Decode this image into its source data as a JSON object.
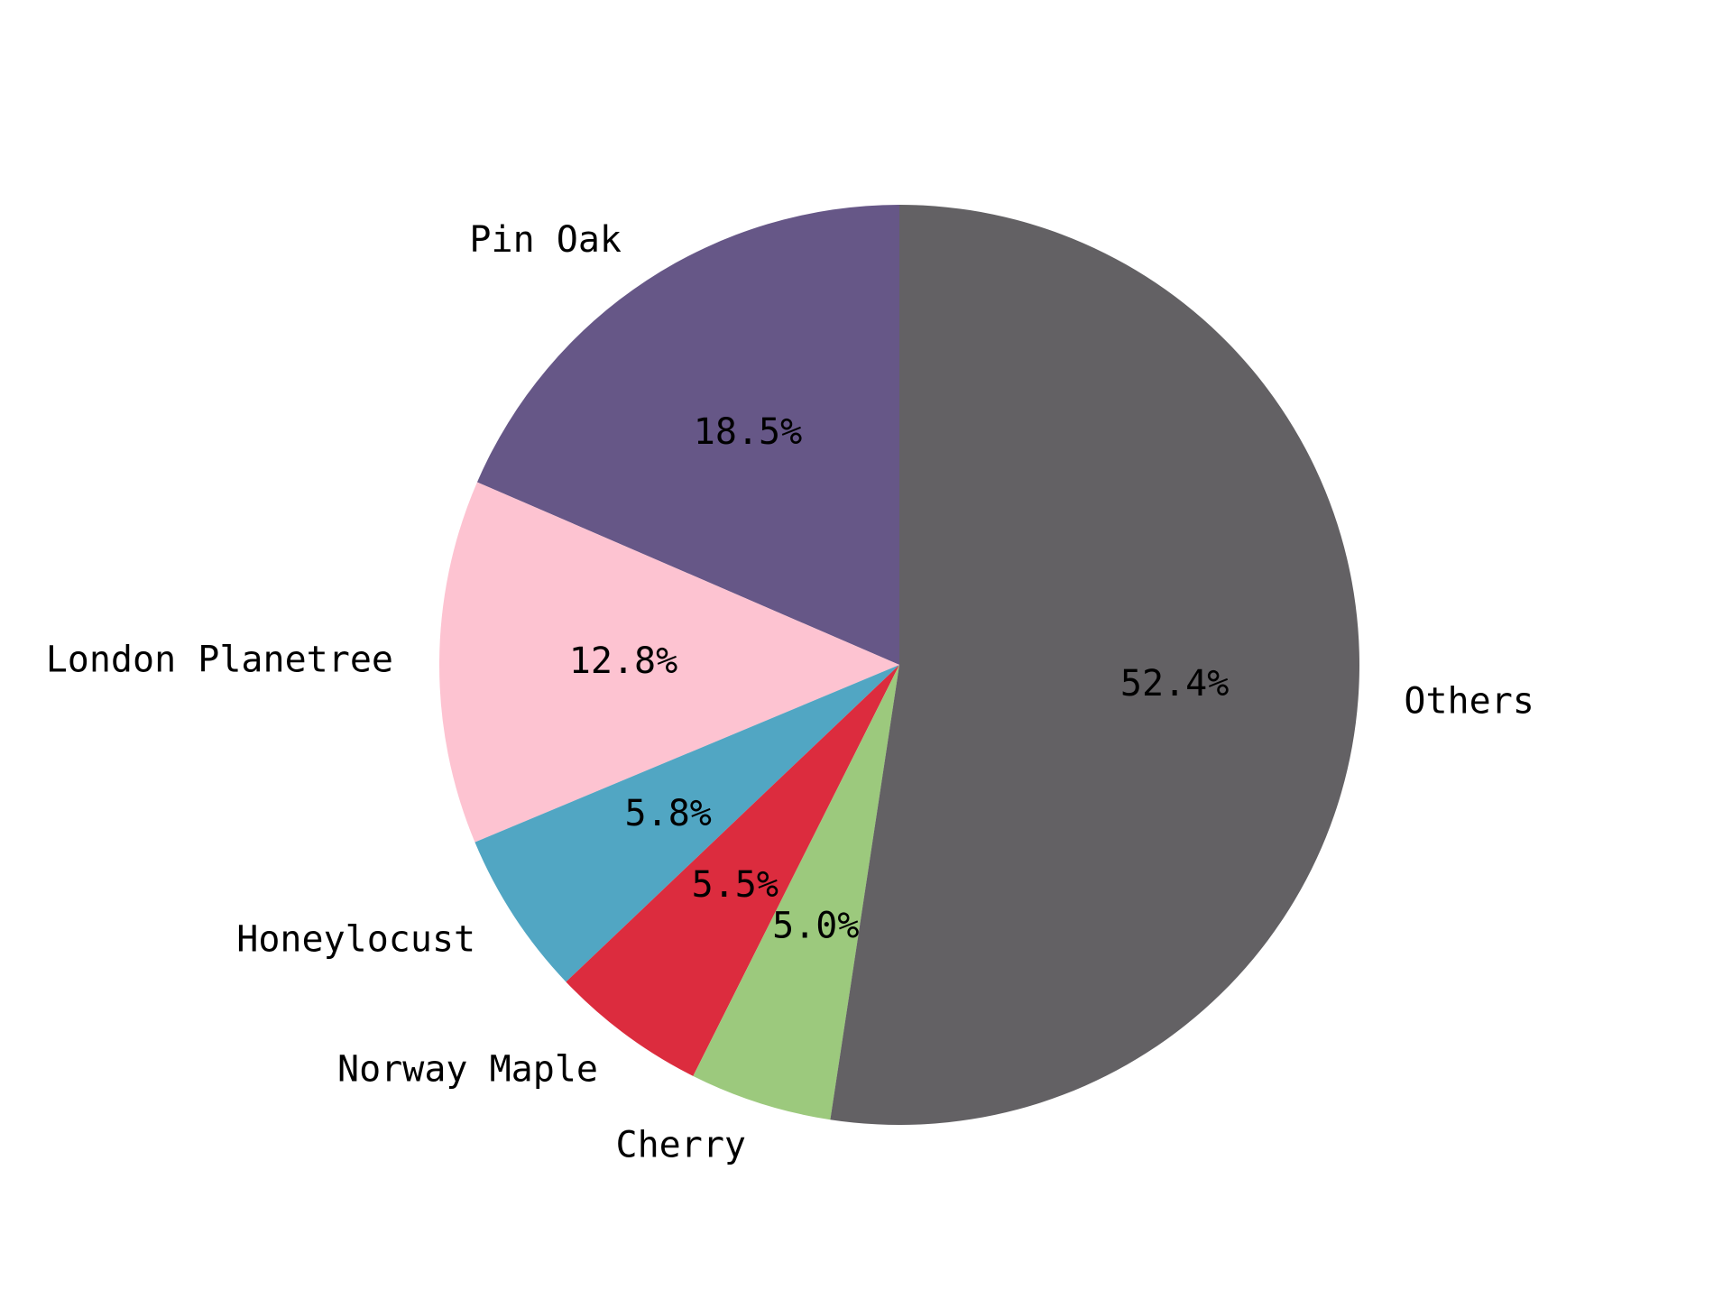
{
  "chart_data": {
    "type": "pie",
    "start_angle_deg": 90,
    "direction": "counterclockwise",
    "slices": [
      {
        "label": "Pin Oak",
        "value": 18.5,
        "pct_label": "18.5%",
        "color": "#665787"
      },
      {
        "label": "London Planetree",
        "value": 12.8,
        "pct_label": "12.8%",
        "color": "#fdc3d1"
      },
      {
        "label": "Honeylocust",
        "value": 5.8,
        "pct_label": "5.8%",
        "color": "#51a6c3"
      },
      {
        "label": "Norway Maple",
        "value": 5.5,
        "pct_label": "5.5%",
        "color": "#dc2c3e"
      },
      {
        "label": "Cherry",
        "value": 5.0,
        "pct_label": "5.0%",
        "color": "#9cc97d"
      },
      {
        "label": "Others",
        "value": 52.4,
        "pct_label": "52.4%",
        "color": "#636164"
      }
    ]
  }
}
